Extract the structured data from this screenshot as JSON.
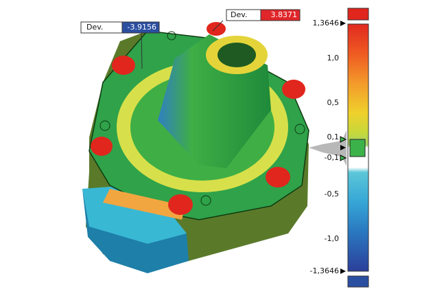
{
  "callouts": [
    {
      "label": "Dev.",
      "value": "-3.9156"
    },
    {
      "label": "Dev.",
      "value": "3.8371"
    }
  ],
  "scale": {
    "labels": [
      "1,3646",
      "1,0",
      "0,5",
      "0,1",
      "-0,1",
      "-0,5",
      "-1,0",
      "-1,3646"
    ]
  }
}
